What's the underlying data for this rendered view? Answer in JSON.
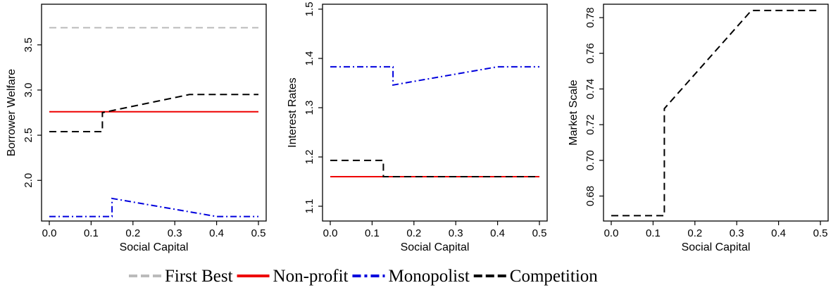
{
  "chart_data": [
    {
      "type": "line",
      "xlabel": "Social Capital",
      "ylabel": "Borrower Welfare",
      "xlim": [
        0,
        0.5
      ],
      "ylim": [
        1.55,
        3.95
      ],
      "xticks": [
        "0.0",
        "0.1",
        "0.2",
        "0.3",
        "0.4",
        "0.5"
      ],
      "yticks": [
        "2.0",
        "2.5",
        "3.0",
        "3.5"
      ],
      "series": [
        {
          "name": "First Best",
          "color": "#bbbbbb",
          "style": "dashed",
          "points": [
            [
              0,
              3.69
            ],
            [
              0.5,
              3.69
            ]
          ]
        },
        {
          "name": "Non-profit",
          "color": "#ee0000",
          "style": "solid",
          "points": [
            [
              0,
              2.76
            ],
            [
              0.5,
              2.76
            ]
          ]
        },
        {
          "name": "Monopolist",
          "color": "#0000dd",
          "style": "dashdot",
          "points": [
            [
              0,
              1.6
            ],
            [
              0.15,
              1.6
            ],
            [
              0.15,
              1.8
            ],
            [
              0.4,
              1.6
            ],
            [
              0.5,
              1.6
            ]
          ]
        },
        {
          "name": "Competition",
          "color": "#000000",
          "style": "dashed",
          "points": [
            [
              0,
              2.54
            ],
            [
              0.127,
              2.54
            ],
            [
              0.127,
              2.75
            ],
            [
              0.335,
              2.95
            ],
            [
              0.5,
              2.95
            ]
          ]
        }
      ]
    },
    {
      "type": "line",
      "xlabel": "Social Capital",
      "ylabel": "Interest Rates",
      "xlim": [
        0,
        0.5
      ],
      "ylim": [
        1.07,
        1.51
      ],
      "xticks": [
        "0.0",
        "0.1",
        "0.2",
        "0.3",
        "0.4",
        "0.5"
      ],
      "yticks": [
        "1.1",
        "1.2",
        "1.3",
        "1.4",
        "1.5"
      ],
      "series": [
        {
          "name": "Non-profit",
          "color": "#ee0000",
          "style": "solid",
          "points": [
            [
              0,
              1.16
            ],
            [
              0.5,
              1.16
            ]
          ]
        },
        {
          "name": "Monopolist",
          "color": "#0000dd",
          "style": "dashdot",
          "points": [
            [
              0,
              1.383
            ],
            [
              0.15,
              1.383
            ],
            [
              0.15,
              1.346
            ],
            [
              0.4,
              1.383
            ],
            [
              0.5,
              1.383
            ]
          ]
        },
        {
          "name": "Competition",
          "color": "#000000",
          "style": "dashed",
          "points": [
            [
              0,
              1.193
            ],
            [
              0.127,
              1.193
            ],
            [
              0.127,
              1.16
            ],
            [
              0.5,
              1.16
            ]
          ]
        }
      ]
    },
    {
      "type": "line",
      "xlabel": "Social Capital",
      "ylabel": "Market Scale",
      "xlim": [
        0,
        0.5
      ],
      "ylim": [
        0.666,
        0.7875
      ],
      "xticks": [
        "0.0",
        "0.1",
        "0.2",
        "0.3",
        "0.4",
        "0.5"
      ],
      "yticks": [
        "0.68",
        "0.70",
        "0.72",
        "0.74",
        "0.76",
        "0.78"
      ],
      "series": [
        {
          "name": "Competition",
          "color": "#000000",
          "style": "dashed",
          "points": [
            [
              0,
              0.669
            ],
            [
              0.127,
              0.669
            ],
            [
              0.127,
              0.729
            ],
            [
              0.335,
              0.784
            ],
            [
              0.5,
              0.784
            ]
          ]
        }
      ]
    }
  ],
  "legend": {
    "items": [
      {
        "label": "First Best",
        "color": "#bbbbbb",
        "style": "dashed"
      },
      {
        "label": "Non-profit",
        "color": "#ee0000",
        "style": "solid"
      },
      {
        "label": "Monopolist",
        "color": "#0000dd",
        "style": "dashdot"
      },
      {
        "label": "Competition",
        "color": "#000000",
        "style": "dashed"
      }
    ]
  }
}
